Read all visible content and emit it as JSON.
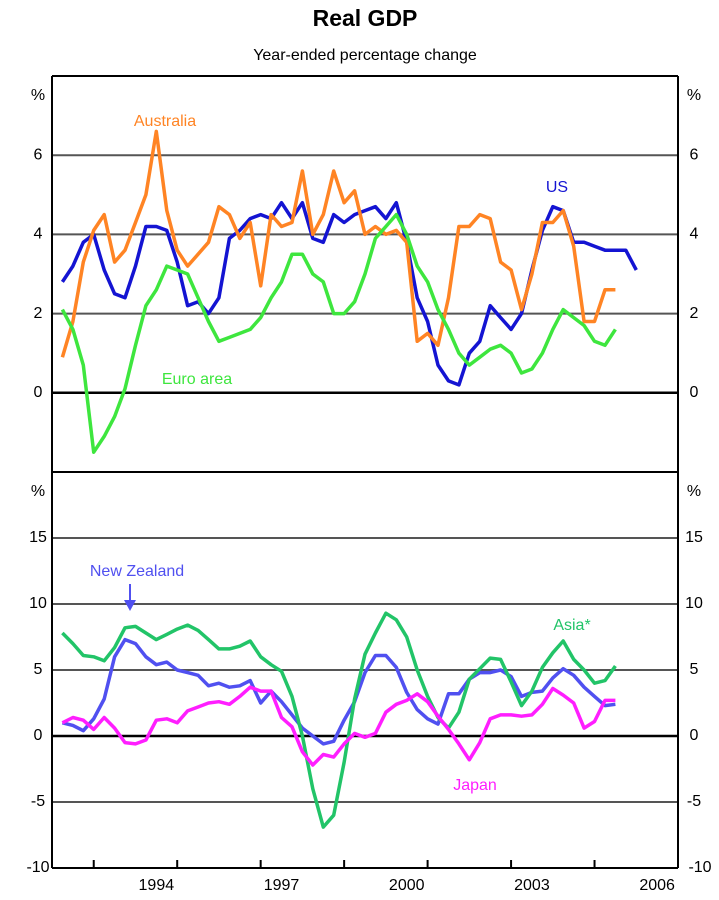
{
  "chart_data": [
    {
      "type": "line",
      "title": "Real GDP",
      "subtitle": "Year-ended percentage change",
      "y_unit": "%",
      "xlim": [
        1991.5,
        2006.5
      ],
      "ylim": [
        -2,
        8
      ],
      "yticks": [
        0,
        2,
        4,
        6
      ],
      "grid": true,
      "x": [
        1991.75,
        1992,
        1992.25,
        1992.5,
        1992.75,
        1993,
        1993.25,
        1993.5,
        1993.75,
        1994,
        1994.25,
        1994.5,
        1994.75,
        1995,
        1995.25,
        1995.5,
        1995.75,
        1996,
        1996.25,
        1996.5,
        1996.75,
        1997,
        1997.25,
        1997.5,
        1997.75,
        1998,
        1998.25,
        1998.5,
        1998.75,
        1999,
        1999.25,
        1999.5,
        1999.75,
        2000,
        2000.25,
        2000.5,
        2000.75,
        2001,
        2001.25,
        2001.5,
        2001.75,
        2002,
        2002.25,
        2002.5,
        2002.75,
        2003,
        2003.25,
        2003.5,
        2003.75,
        2004,
        2004.25,
        2004.5,
        2004.75,
        2005,
        2005.25,
        2005.5
      ],
      "series": [
        {
          "name": "US",
          "color": "#1414d2",
          "values": [
            2.8,
            3.2,
            3.8,
            4.0,
            3.1,
            2.5,
            2.4,
            3.2,
            4.2,
            4.2,
            4.1,
            3.3,
            2.2,
            2.3,
            2.0,
            2.4,
            3.9,
            4.1,
            4.4,
            4.5,
            4.4,
            4.8,
            4.4,
            4.8,
            3.9,
            3.8,
            4.5,
            4.3,
            4.5,
            4.6,
            4.7,
            4.4,
            4.8,
            3.8,
            2.4,
            1.8,
            0.7,
            0.3,
            0.2,
            1.0,
            1.3,
            2.2,
            1.9,
            1.6,
            2.0,
            3.1,
            4.1,
            4.7,
            4.6,
            3.8,
            3.8,
            3.7,
            3.6,
            3.6,
            3.6,
            3.1
          ]
        },
        {
          "name": "Australia",
          "color": "#ff8424",
          "values": [
            0.9,
            1.8,
            3.3,
            4.1,
            4.5,
            3.3,
            3.6,
            4.3,
            5.0,
            6.6,
            4.6,
            3.6,
            3.2,
            3.5,
            3.8,
            4.7,
            4.5,
            3.9,
            4.3,
            2.7,
            4.5,
            4.2,
            4.3,
            5.6,
            4.0,
            4.5,
            5.6,
            4.8,
            5.1,
            4.0,
            4.2,
            4.0,
            4.1,
            3.8,
            1.3,
            1.5,
            1.2,
            2.4,
            4.2,
            4.2,
            4.5,
            4.4,
            3.3,
            3.1,
            2.1,
            3.0,
            4.3,
            4.3,
            4.6,
            3.7,
            1.8,
            1.8,
            2.6,
            2.6,
            null,
            null
          ]
        },
        {
          "name": "Euro area",
          "color": "#3ee63e",
          "values": [
            2.1,
            1.6,
            0.7,
            -1.5,
            -1.1,
            -0.6,
            0.1,
            1.2,
            2.2,
            2.6,
            3.2,
            3.1,
            3.0,
            2.4,
            1.8,
            1.3,
            1.4,
            1.5,
            1.6,
            1.9,
            2.4,
            2.8,
            3.5,
            3.5,
            3.0,
            2.8,
            2.0,
            2.0,
            2.3,
            3.0,
            3.9,
            4.2,
            4.5,
            4.0,
            3.2,
            2.8,
            2.1,
            1.6,
            1.0,
            0.7,
            0.9,
            1.1,
            1.2,
            1.0,
            0.5,
            0.6,
            1.0,
            1.6,
            2.1,
            1.9,
            1.7,
            1.3,
            1.2,
            1.6,
            null,
            null
          ]
        }
      ]
    },
    {
      "type": "line",
      "y_unit": "%",
      "xlim": [
        1991.5,
        2006.5
      ],
      "ylim": [
        -10,
        20
      ],
      "yticks": [
        -10,
        -5,
        0,
        5,
        10,
        15
      ],
      "grid": true,
      "xticks": [
        1994,
        1997,
        2000,
        2003,
        2006
      ],
      "xminor": [
        1992.5,
        1994.5,
        1996.5,
        1998.5,
        2000.5,
        2002.5,
        2004.5
      ],
      "x": [
        1991.75,
        1992,
        1992.25,
        1992.5,
        1992.75,
        1993,
        1993.25,
        1993.5,
        1993.75,
        1994,
        1994.25,
        1994.5,
        1994.75,
        1995,
        1995.25,
        1995.5,
        1995.75,
        1996,
        1996.25,
        1996.5,
        1996.75,
        1997,
        1997.25,
        1997.5,
        1997.75,
        1998,
        1998.25,
        1998.5,
        1998.75,
        1999,
        1999.25,
        1999.5,
        1999.75,
        2000,
        2000.25,
        2000.5,
        2000.75,
        2001,
        2001.25,
        2001.5,
        2001.75,
        2002,
        2002.25,
        2002.5,
        2002.75,
        2003,
        2003.25,
        2003.5,
        2003.75,
        2004,
        2004.25,
        2004.5,
        2004.75,
        2005
      ],
      "series": [
        {
          "name": "New Zealand",
          "color": "#5050f0",
          "values": [
            1.0,
            0.8,
            0.4,
            1.3,
            2.8,
            6.0,
            7.3,
            7.0,
            6.0,
            5.4,
            5.6,
            5.0,
            4.8,
            4.6,
            3.8,
            4.0,
            3.7,
            3.8,
            4.2,
            2.5,
            3.4,
            2.6,
            1.6,
            0.6,
            0.0,
            -0.6,
            -0.4,
            1.2,
            2.6,
            4.8,
            6.1,
            6.1,
            5.2,
            3.3,
            2.0,
            1.3,
            0.9,
            3.2,
            3.2,
            4.3,
            4.8,
            4.8,
            5.0,
            4.5,
            3.0,
            3.3,
            3.4,
            4.4,
            5.1,
            4.6,
            3.7,
            3.0,
            2.3,
            2.4
          ]
        },
        {
          "name": "Asia*",
          "color": "#22c468",
          "values": [
            7.8,
            7.0,
            6.1,
            6.0,
            5.7,
            6.7,
            8.2,
            8.3,
            7.8,
            7.3,
            7.7,
            8.1,
            8.4,
            8.0,
            7.3,
            6.6,
            6.6,
            6.8,
            7.2,
            6.0,
            5.4,
            4.9,
            3.0,
            0.0,
            -4.0,
            -6.9,
            -6.0,
            -2.0,
            2.8,
            6.2,
            7.8,
            9.3,
            8.8,
            7.5,
            5.0,
            3.0,
            1.4,
            0.6,
            1.8,
            4.3,
            5.1,
            5.9,
            5.8,
            4.1,
            2.3,
            3.4,
            5.2,
            6.3,
            7.2,
            5.8,
            5.0,
            4.0,
            4.2,
            5.3
          ]
        },
        {
          "name": "Japan",
          "color": "#ff1eff",
          "values": [
            1.0,
            1.4,
            1.2,
            0.5,
            1.4,
            0.6,
            -0.5,
            -0.6,
            -0.3,
            1.2,
            1.3,
            1.0,
            1.9,
            2.2,
            2.5,
            2.6,
            2.4,
            3.0,
            3.7,
            3.4,
            3.4,
            1.4,
            0.7,
            -1.2,
            -2.2,
            -1.4,
            -1.6,
            -0.6,
            0.2,
            -0.1,
            0.2,
            1.8,
            2.4,
            2.7,
            3.2,
            2.6,
            1.5,
            0.5,
            -0.6,
            -1.8,
            -0.5,
            1.3,
            1.6,
            1.6,
            1.5,
            1.6,
            2.4,
            3.6,
            3.1,
            2.5,
            0.6,
            1.1,
            2.7,
            2.7
          ]
        }
      ]
    }
  ]
}
